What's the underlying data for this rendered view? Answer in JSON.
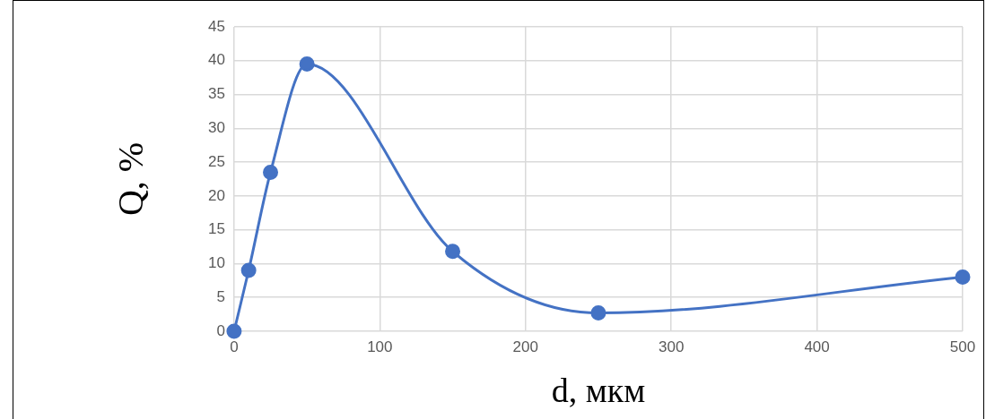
{
  "chart_data": {
    "type": "line",
    "xlabel": "d, мкм",
    "ylabel": "Q, %",
    "x": [
      0,
      10,
      25,
      50,
      150,
      250,
      500
    ],
    "series": [
      {
        "color": "#4472c4",
        "values": [
          0,
          9,
          23.5,
          39.5,
          11.8,
          2.7,
          8
        ]
      }
    ],
    "xlim": [
      0,
      500
    ],
    "xticks": [
      0,
      100,
      200,
      300,
      400,
      500
    ],
    "ylim": [
      0,
      45
    ],
    "yticks": [
      0,
      5,
      10,
      15,
      20,
      25,
      30,
      35,
      40,
      45
    ],
    "grid": true,
    "marker": "circle",
    "line_style": "solid",
    "legend": false
  }
}
